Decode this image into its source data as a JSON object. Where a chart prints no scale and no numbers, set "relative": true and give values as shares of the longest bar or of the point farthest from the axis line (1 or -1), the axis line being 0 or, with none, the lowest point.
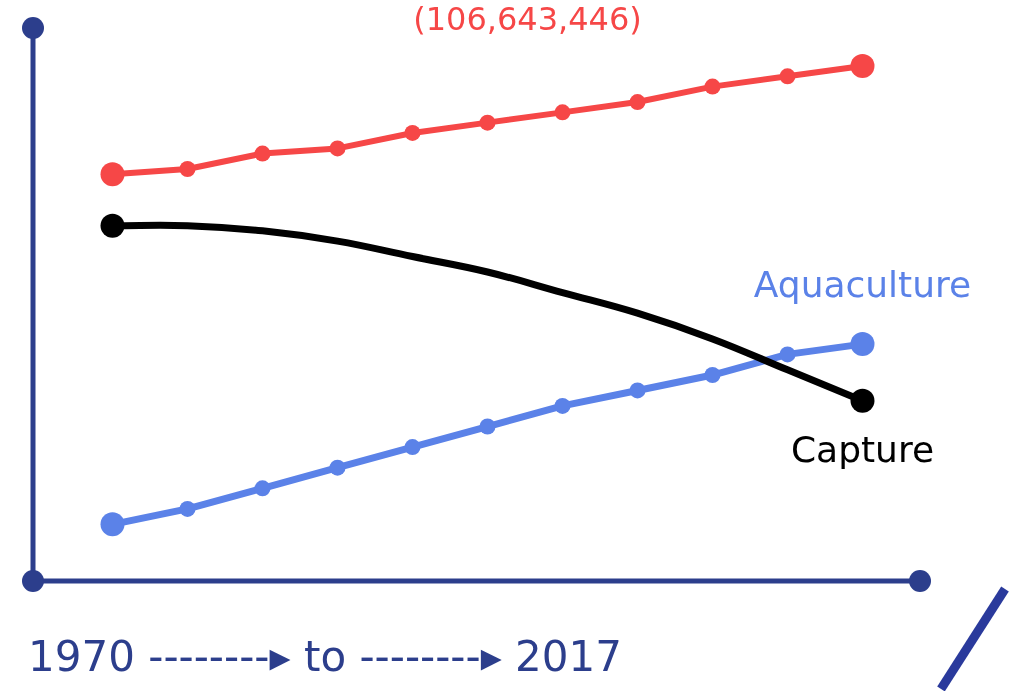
{
  "chart_data": {
    "type": "line",
    "relative": true,
    "marker": "circle",
    "legend": false,
    "grid": false,
    "xlabel": "1970 --------▸ to --------▸ 2017",
    "annotations": [
      "(106,643,446)"
    ],
    "categories": [
      null,
      null,
      null,
      null,
      null,
      null,
      null,
      null,
      null,
      null,
      null
    ],
    "series": [
      {
        "color": "#f64747",
        "values": [
          0.79,
          0.8,
          0.83,
          0.84,
          0.87,
          0.89,
          0.91,
          0.93,
          0.96,
          0.98,
          1
        ]
      },
      {
        "name": "Capture",
        "color": "#000000",
        "marker": "none",
        "values": [
          0.69,
          0.69,
          0.68,
          0.66,
          0.63,
          0.6,
          0.56,
          0.52,
          0.47,
          0.41,
          0.35
        ]
      },
      {
        "name": "Aquaculture",
        "color": "#5b82e8",
        "values": [
          0.11,
          0.14,
          0.18,
          0.22,
          0.26,
          0.3,
          0.34,
          0.37,
          0.4,
          0.44,
          0.46
        ]
      }
    ]
  }
}
